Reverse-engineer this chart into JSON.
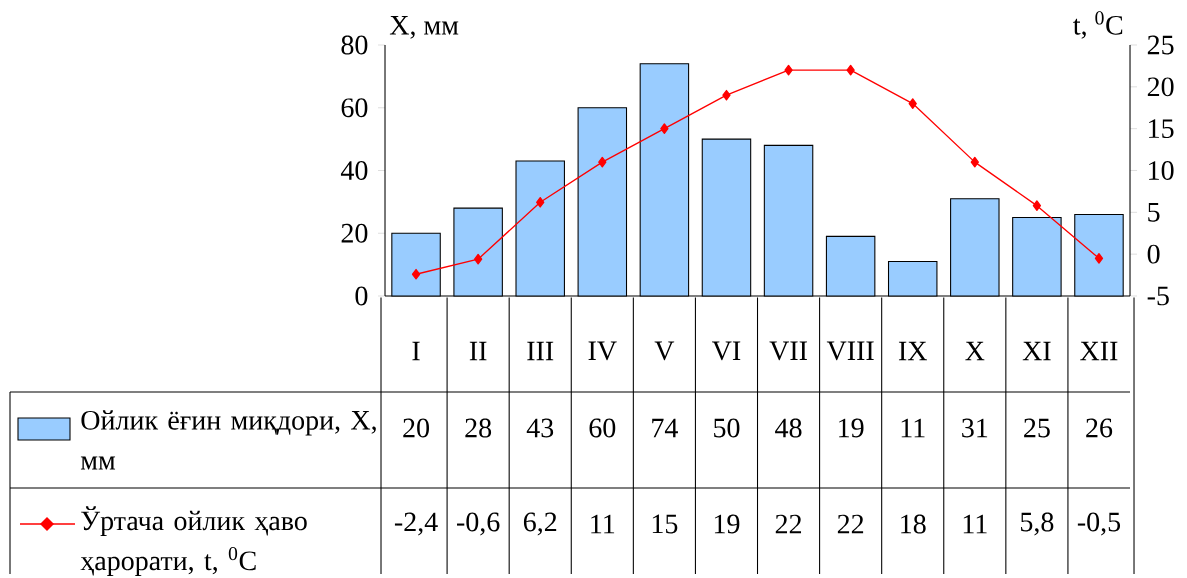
{
  "chart_data": {
    "type": "bar",
    "ylabel": "X, мм",
    "y2label": "t, $^{0}$C",
    "categories": [
      "I",
      "II",
      "III",
      "IV",
      "V",
      "VI",
      "VII",
      "VIII",
      "IX",
      "X",
      "XI",
      "XII"
    ],
    "series": [
      {
        "name": "Ойлик ёғин миқдори, X, мм",
        "color": "#99ccff",
        "values": [
          20,
          28,
          43,
          60,
          74,
          50,
          48,
          19,
          11,
          31,
          25,
          26
        ],
        "value_labels": [
          "20",
          "28",
          "43",
          "60",
          "74",
          "50",
          "48",
          "19",
          "11",
          "31",
          "25",
          "26"
        ]
      },
      {
        "name": "Ўртача ойлик ҳаво ҳарорати, t, $^{0}$C",
        "type": "line",
        "axis": "y2",
        "color": "#ff0000",
        "marker": "diamond",
        "line_style": "solid",
        "values": [
          -2.4,
          -0.6,
          6.2,
          11,
          15,
          19,
          22,
          22,
          18,
          11,
          5.8,
          -0.5
        ],
        "value_labels": [
          "-2,4",
          "-0,6",
          "6,2",
          "11",
          "15",
          "19",
          "22",
          "22",
          "18",
          "11",
          "5,8",
          "-0,5"
        ]
      }
    ],
    "ylim": [
      0,
      80
    ],
    "yticks": [
      0,
      20,
      40,
      60,
      80
    ],
    "y2lim": [
      -5,
      25
    ],
    "y2ticks": [
      -5,
      0,
      5,
      10,
      15,
      20,
      25
    ],
    "legend": "bottom left"
  }
}
